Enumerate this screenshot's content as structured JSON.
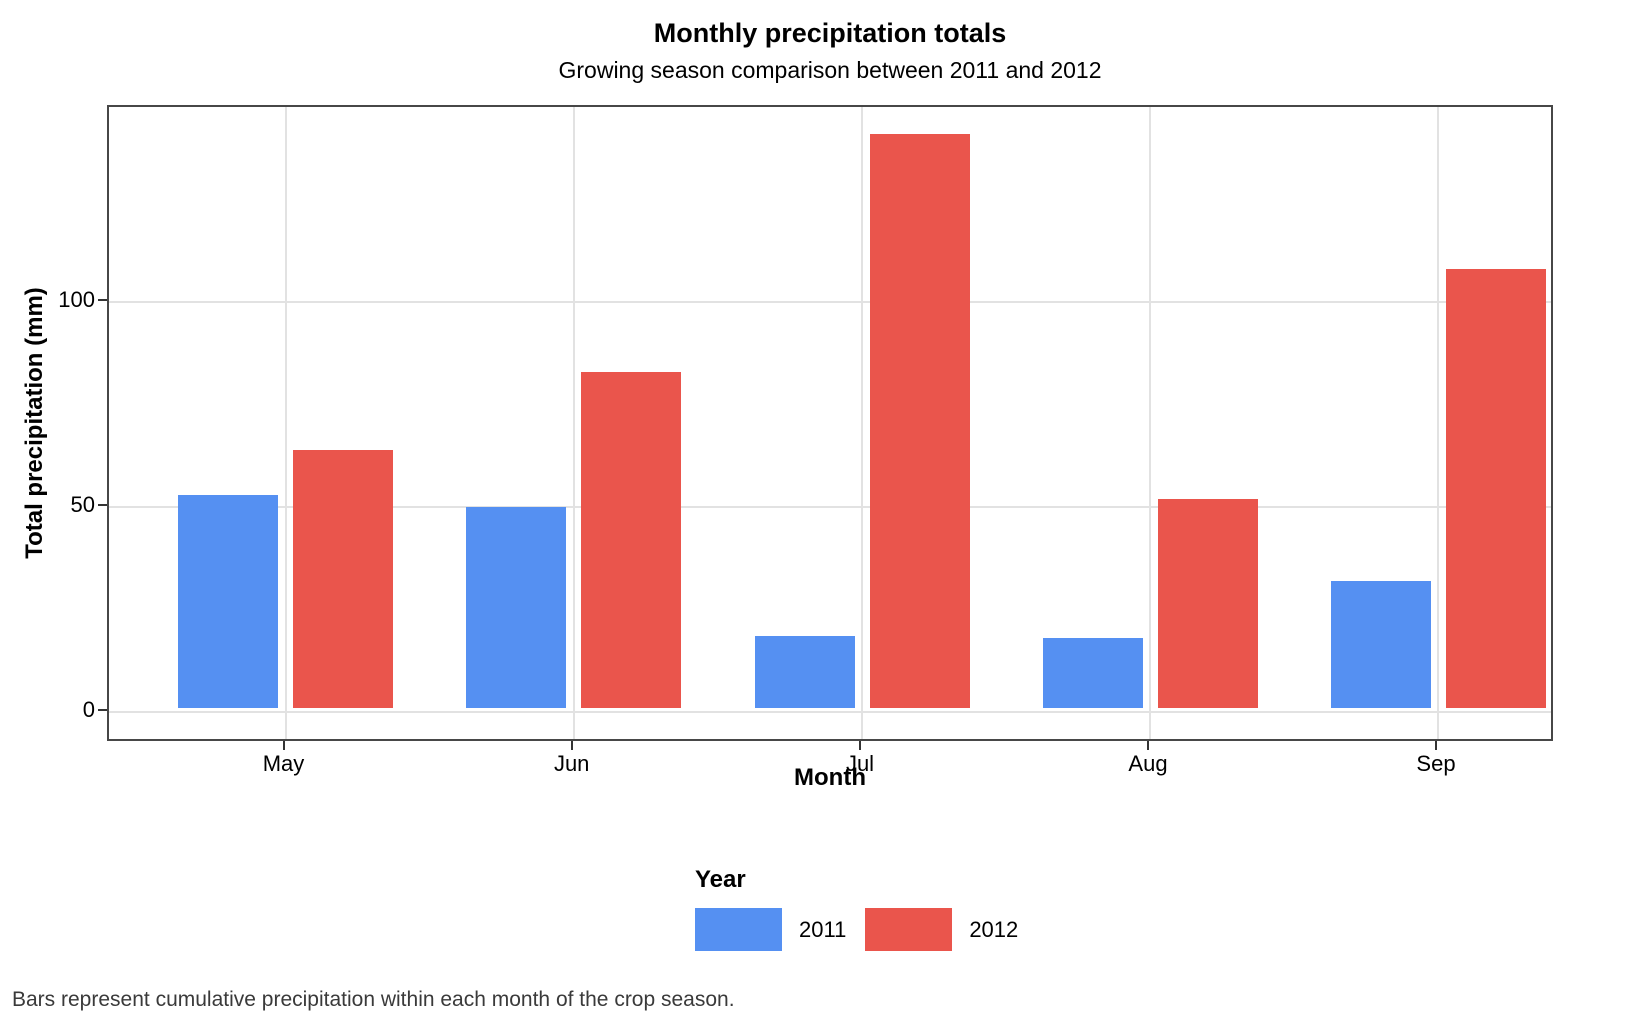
{
  "chart_data": {
    "type": "bar",
    "title": "Monthly precipitation totals",
    "subtitle": "Growing season comparison between 2011 and 2012",
    "caption": "Bars represent cumulative precipitation within each month of the crop season.",
    "xlabel": "Month",
    "ylabel": "Total precipitation (mm)",
    "categories": [
      "May",
      "Jun",
      "Jul",
      "Aug",
      "Sep"
    ],
    "series": [
      {
        "name": "2011",
        "color": "#5590F2",
        "values": [
          52,
          49,
          17.5,
          17,
          31
        ]
      },
      {
        "name": "2012",
        "color": "#EA554C",
        "values": [
          63,
          82,
          140,
          51,
          107
        ]
      }
    ],
    "y_ticks": [
      0,
      50,
      100
    ],
    "ylim": [
      0,
      147
    ],
    "legend_title": "Year",
    "legend_position": "bottom",
    "grid": "major",
    "colors": {
      "panel_border": "#474747",
      "gridline": "#e2e2e2",
      "tick": "#333333",
      "caption_text": "#3a3a3a"
    }
  }
}
